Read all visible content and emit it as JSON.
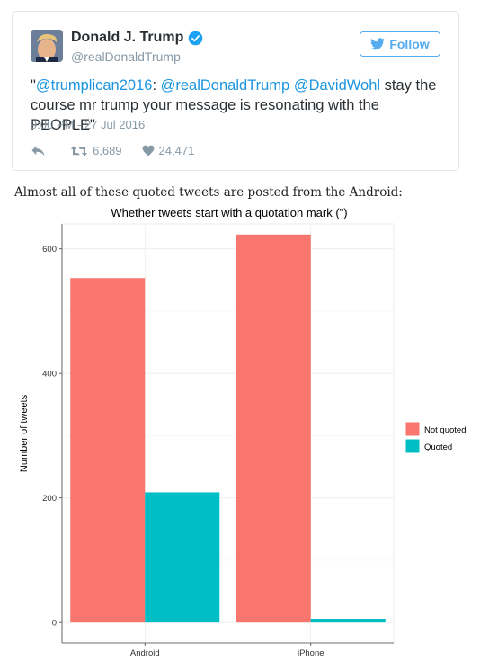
{
  "tweet": {
    "name": "Donald J. Trump",
    "handle": "@realDonaldTrump",
    "follow_label": "Follow",
    "text_parts": {
      "quote_open": "\"",
      "mention1": "@trumplican2016",
      "colon": ":",
      "mention2": "@realDonaldTrump",
      "mention3": "@DavidWohl",
      "rest": " stay the course mr trump your message is resonating with the PEOPLE\""
    },
    "timestamp": "9:00 PM - 27 Jul 2016",
    "retweets": "6,689",
    "likes": "24,471",
    "colors": {
      "link": "#1b95e0",
      "follow": "#55acee",
      "muted": "#8899a6"
    }
  },
  "caption": "Almost all of these quoted tweets are posted from the Android:",
  "chart_data": {
    "type": "bar",
    "title": "Whether tweets start with a quotation mark (\")",
    "xlabel": "",
    "ylabel": "Number of tweets",
    "categories": [
      "Android",
      "iPhone"
    ],
    "series": [
      {
        "name": "Not quoted",
        "color": "#f8766d",
        "values": [
          553,
          623
        ]
      },
      {
        "name": "Quoted",
        "color": "#00bfc4",
        "values": [
          209,
          6
        ]
      }
    ],
    "yticks": [
      0,
      200,
      400,
      600
    ],
    "ylim": [
      -33,
      640
    ],
    "grid": true,
    "legend_position": "right"
  }
}
